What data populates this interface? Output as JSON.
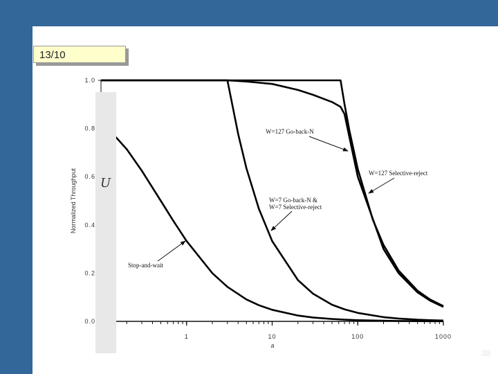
{
  "slide": {
    "title": "13/10",
    "page_number": "38",
    "background_color": "#336699"
  },
  "chart_data": {
    "type": "line",
    "xlabel": "a",
    "ylabel": "Normalized Throughput",
    "y_symbol": "U",
    "x_scale": "log",
    "xlim": [
      0.1,
      1000
    ],
    "ylim": [
      0,
      1.0
    ],
    "x_ticks": [
      {
        "v": 1,
        "label": "1"
      },
      {
        "v": 10,
        "label": "10"
      },
      {
        "v": 100,
        "label": "100"
      },
      {
        "v": 1000,
        "label": "1000"
      }
    ],
    "y_ticks": [
      {
        "v": 0,
        "label": "0.0"
      },
      {
        "v": 0.2,
        "label": "0.2"
      },
      {
        "v": 0.4,
        "label": "0.4"
      },
      {
        "v": 0.6,
        "label": "0.6"
      },
      {
        "v": 0.8,
        "label": "0.8"
      },
      {
        "v": 1.0,
        "label": "1.0"
      }
    ],
    "grid": false,
    "series": [
      {
        "name": "Stop-and-wait",
        "x": [
          0.1,
          0.2,
          0.3,
          0.5,
          0.7,
          1,
          2,
          3,
          5,
          7,
          10,
          20,
          30,
          50,
          70,
          100,
          200,
          300,
          500,
          700,
          1000
        ],
        "y": [
          0.833,
          0.714,
          0.625,
          0.5,
          0.417,
          0.333,
          0.2,
          0.143,
          0.091,
          0.067,
          0.048,
          0.024,
          0.016,
          0.0099,
          0.0071,
          0.005,
          0.0025,
          0.0017,
          0.001,
          0.0007,
          0.0005
        ]
      },
      {
        "name": "W=7 Go-back-N & W=7 Selective-reject",
        "x": [
          0.1,
          1,
          3,
          4,
          5,
          7,
          10,
          20,
          30,
          50,
          70,
          100,
          200,
          300,
          500,
          700,
          1000
        ],
        "y": [
          1,
          1,
          1,
          0.778,
          0.636,
          0.467,
          0.333,
          0.171,
          0.115,
          0.069,
          0.05,
          0.035,
          0.0175,
          0.0117,
          0.007,
          0.005,
          0.0035
        ]
      },
      {
        "name": "W=127 Go-back-N",
        "x": [
          0.1,
          1,
          3,
          5,
          10,
          20,
          30,
          50,
          63,
          70,
          100,
          200,
          300,
          500,
          700,
          1000
        ],
        "y": [
          1,
          1,
          1,
          0.995,
          0.985,
          0.96,
          0.94,
          0.91,
          0.89,
          0.86,
          0.6,
          0.3,
          0.2,
          0.12,
          0.086,
          0.06
        ]
      },
      {
        "name": "W=127 Selective-reject",
        "x": [
          0.1,
          1,
          10,
          63,
          70,
          80,
          100,
          150,
          200,
          300,
          500,
          700,
          1000
        ],
        "y": [
          1,
          1,
          1,
          1,
          0.901,
          0.79,
          0.632,
          0.422,
          0.317,
          0.211,
          0.127,
          0.0907,
          0.0635
        ]
      }
    ],
    "annotations": [
      {
        "text": "W=127 Go-back-N",
        "points_to": "W=127 Go-back-N"
      },
      {
        "text": "W=127 Selective-reject",
        "points_to": "W=127 Selective-reject"
      },
      {
        "text": "W=7 Go-back-N &",
        "text2": "W=7 Selective-reject",
        "points_to": "W=7 Go-back-N & W=7 Selective-reject"
      },
      {
        "text": "Stop-and-wait",
        "points_to": "Stop-and-wait"
      }
    ]
  }
}
